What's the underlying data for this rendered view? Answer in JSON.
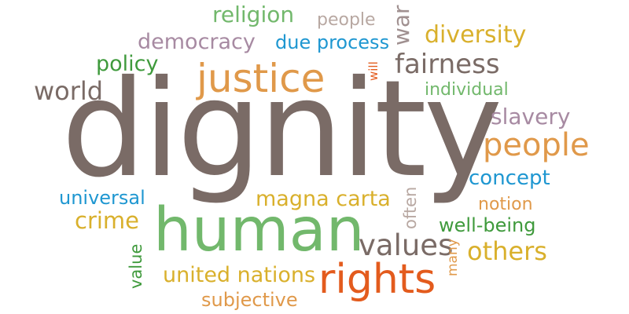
{
  "colors": {
    "brown": "#7a6b66",
    "orange": "#e0994a",
    "green": "#72b86c",
    "dark_green": "#3f9a3c",
    "blue": "#1f97d1",
    "purple": "#a78aa2",
    "gold": "#d9b02c",
    "red_orange": "#e35b1d",
    "light_gray": "#b8a8a2"
  },
  "words": {
    "religion": "religion",
    "people_small": "people",
    "war": "war",
    "democracy": "democracy",
    "due_process": "due process",
    "diversity": "diversity",
    "policy": "policy",
    "justice": "justice",
    "will": "will",
    "fairness": "fairness",
    "world": "world",
    "individual": "individual",
    "dignity": "dignity",
    "slavery": "slavery",
    "people_large": "people",
    "concept": "concept",
    "universal": "universal",
    "magna_carta": "magna carta",
    "often": "often",
    "notion": "notion",
    "crime": "crime",
    "human": "human",
    "well_being": "well-being",
    "value": "value",
    "values": "values",
    "others": "others",
    "many": "many",
    "united_nations": "united nations",
    "rights": "rights",
    "subjective": "subjective"
  }
}
